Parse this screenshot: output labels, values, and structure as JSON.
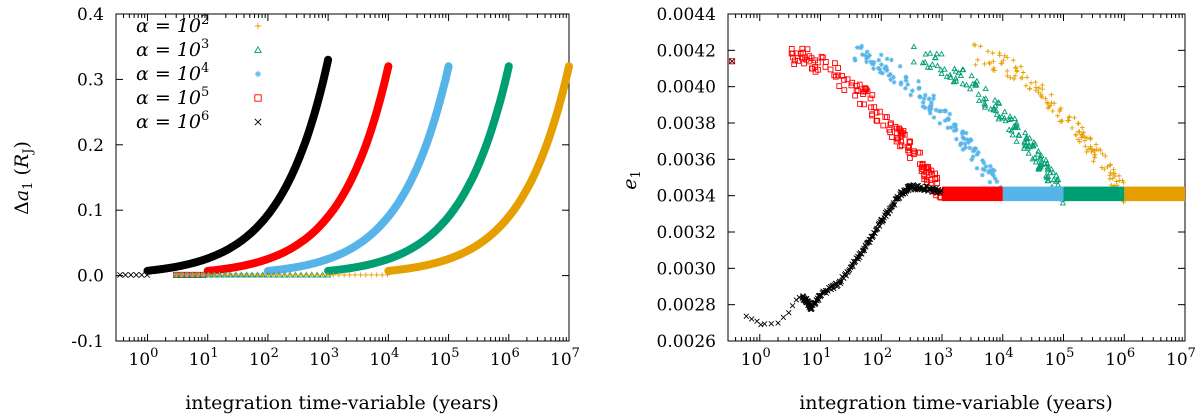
{
  "colors": {
    "alpha_1e2": "#E69F00",
    "alpha_1e3": "#009E73",
    "alpha_1e4": "#56B4E9",
    "alpha_1e5": "#FF0000",
    "alpha_1e6": "#000000"
  },
  "chart_data": [
    {
      "type": "scatter",
      "xlabel": "integration time-variable (years)",
      "ylabel": "Δa₁ (R_J)",
      "xscale": "log",
      "xlim": [
        0.3,
        10000000
      ],
      "ylim": [
        -0.1,
        0.4
      ],
      "x_ticks": [
        "10^0",
        "10^1",
        "10^2",
        "10^3",
        "10^4",
        "10^5",
        "10^6",
        "10^7"
      ],
      "y_ticks": [
        "-0.1",
        "0.0",
        "0.1",
        "0.2",
        "0.3",
        "0.4"
      ],
      "legend_position": "top-left",
      "series": [
        {
          "name": "α = 10^2",
          "alpha_exp": "2",
          "marker": "plus",
          "color": "#E69F00",
          "x_end": 10000000,
          "y_end": 0.32
        },
        {
          "name": "α = 10^3",
          "alpha_exp": "3",
          "marker": "triangle",
          "color": "#009E73",
          "x_end": 1000000,
          "y_end": 0.32
        },
        {
          "name": "α = 10^4",
          "alpha_exp": "4",
          "marker": "star",
          "color": "#56B4E9",
          "x_end": 100000,
          "y_end": 0.32
        },
        {
          "name": "α = 10^5",
          "alpha_exp": "5",
          "marker": "square",
          "color": "#FF0000",
          "x_end": 10000,
          "y_end": 0.32
        },
        {
          "name": "α = 10^6",
          "alpha_exp": "6",
          "marker": "cross",
          "color": "#000000",
          "x_end": 1000,
          "y_end": 0.33
        }
      ]
    },
    {
      "type": "scatter",
      "xlabel": "integration time-variable (years)",
      "ylabel": "e₁",
      "xscale": "log",
      "xlim": [
        0.3,
        10000000
      ],
      "ylim": [
        0.0026,
        0.0044
      ],
      "x_ticks": [
        "10^0",
        "10^1",
        "10^2",
        "10^3",
        "10^4",
        "10^5",
        "10^6",
        "10^7"
      ],
      "y_ticks": [
        "0.0026",
        "0.0028",
        "0.0030",
        "0.0032",
        "0.0034",
        "0.0036",
        "0.0038",
        "0.0040",
        "0.0042",
        "0.0044"
      ],
      "initial_point": {
        "x": 0.35,
        "y": 0.00414
      },
      "equilibrium_e": 0.00341,
      "series": [
        {
          "name": "α = 10^2",
          "color": "#E69F00",
          "x_end": 10000000
        },
        {
          "name": "α = 10^3",
          "color": "#009E73",
          "x_end": 1000000
        },
        {
          "name": "α = 10^4",
          "color": "#56B4E9",
          "x_end": 100000
        },
        {
          "name": "α = 10^5",
          "color": "#FF0000",
          "x_end": 10000
        },
        {
          "name": "α = 10^6",
          "color": "#000000",
          "x_end": 1000,
          "profile": [
            [
              0.6,
              0.00274
            ],
            [
              0.9,
              0.0027
            ],
            [
              1.2,
              0.00268
            ],
            [
              2,
              0.0027
            ],
            [
              3,
              0.00276
            ],
            [
              4,
              0.00284
            ],
            [
              5,
              0.00284
            ],
            [
              6,
              0.00282
            ],
            [
              7,
              0.00278
            ],
            [
              10,
              0.00285
            ],
            [
              20,
              0.00292
            ],
            [
              40,
              0.00305
            ],
            [
              70,
              0.00317
            ],
            [
              120,
              0.0033
            ],
            [
              200,
              0.0034
            ],
            [
              300,
              0.00345
            ],
            [
              500,
              0.00344
            ],
            [
              1000,
              0.00342
            ]
          ]
        }
      ]
    }
  ]
}
